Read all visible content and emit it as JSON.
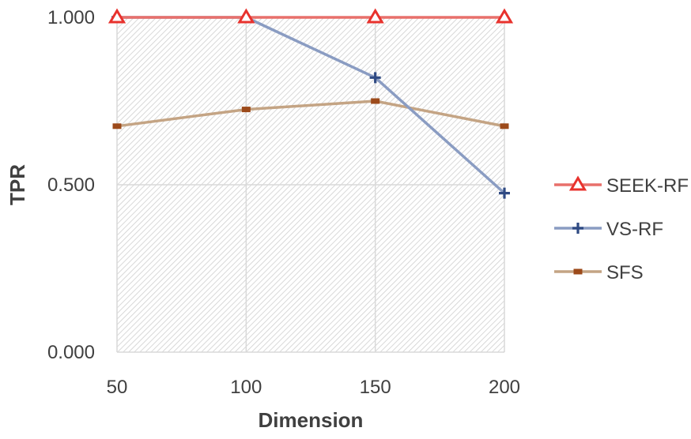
{
  "chart_data": {
    "type": "line",
    "title": "",
    "xlabel": "Dimension",
    "ylabel": "TPR",
    "categories": [
      "50",
      "100",
      "150",
      "200"
    ],
    "x": [
      50,
      100,
      150,
      200
    ],
    "yticks": [
      "0.000",
      "0.500",
      "1.000"
    ],
    "ylim": [
      0,
      1
    ],
    "grid": true,
    "legend_position": "right",
    "series": [
      {
        "name": "SEEK-RF",
        "values": [
          1.0,
          1.0,
          1.0,
          1.0
        ],
        "color": "#e8706b",
        "marker": "triangle",
        "marker_color": "#e8322d"
      },
      {
        "name": "VS-RF",
        "values": [
          1.0,
          1.0,
          0.82,
          0.475
        ],
        "color": "#8a9cc2",
        "marker": "plus",
        "marker_color": "#2f4a83"
      },
      {
        "name": "SFS",
        "values": [
          0.675,
          0.725,
          0.75,
          0.675
        ],
        "color": "#c4a484",
        "marker": "dash",
        "marker_color": "#9c4a1a"
      }
    ]
  }
}
